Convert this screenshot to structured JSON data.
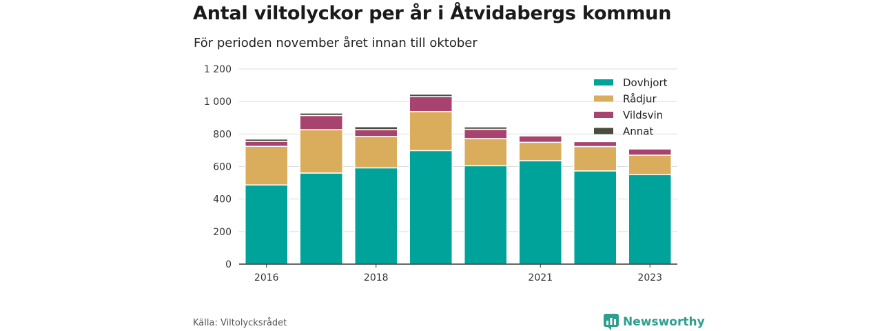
{
  "header": {
    "title": "Antal viltolyckor per år i Åtvidabergs kommun",
    "subtitle": "För perioden november året innan till oktober"
  },
  "footer": {
    "source": "Källa: Viltolycksrådet",
    "brand": "Newsworthy",
    "brand_icon": "newsworthy-logo-icon"
  },
  "chart_data": {
    "type": "bar",
    "stacked": true,
    "categories": [
      "2016",
      "2017",
      "2018",
      "2019",
      "2020",
      "2021",
      "2022",
      "2023"
    ],
    "x_tick_labels": [
      "2016",
      "",
      "2018",
      "",
      "",
      "2021",
      "",
      "2023"
    ],
    "series": [
      {
        "name": "Dovhjort",
        "color": "#00a39a",
        "values": [
          487,
          560,
          592,
          698,
          605,
          636,
          573,
          550
        ]
      },
      {
        "name": "Rådjur",
        "color": "#d9ad5b",
        "values": [
          237,
          267,
          193,
          240,
          167,
          113,
          150,
          120
        ]
      },
      {
        "name": "Vildsvin",
        "color": "#a8426e",
        "values": [
          30,
          87,
          42,
          92,
          57,
          40,
          30,
          38
        ]
      },
      {
        "name": "Annat",
        "color": "#4a4d3c",
        "values": [
          15,
          15,
          18,
          15,
          15,
          2,
          0,
          0
        ]
      }
    ],
    "y_ticks": [
      0,
      200,
      400,
      600,
      800,
      1000,
      1200
    ],
    "y_tick_labels": [
      "0",
      "200",
      "400",
      "600",
      "800",
      "1 000",
      "1 200"
    ],
    "ylim": [
      0,
      1200
    ],
    "grid": true,
    "legend": "top-right",
    "xlabel": "",
    "ylabel": ""
  }
}
